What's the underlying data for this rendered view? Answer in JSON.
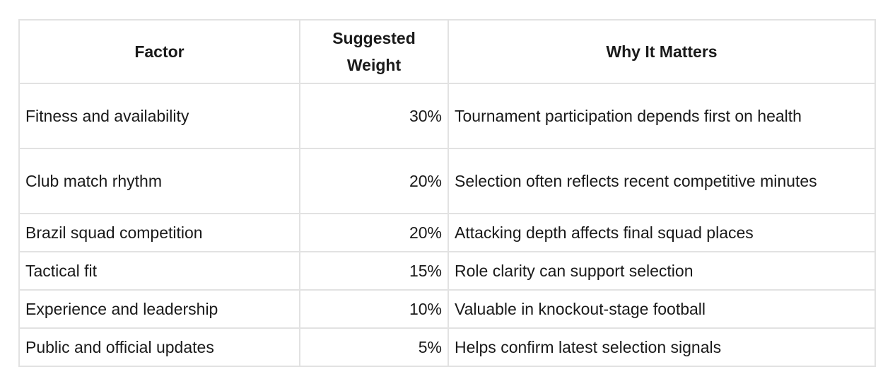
{
  "table": {
    "header": [
      "Factor",
      "Suggested Weight",
      "Why It Matters"
    ],
    "rows": [
      [
        "Fitness and availability",
        "30%",
        "Tournament participation depends first on health"
      ],
      [
        "Club match rhythm",
        "20%",
        "Selection often reflects recent competitive minutes"
      ],
      [
        "Brazil squad competition",
        "20%",
        "Attacking depth affects final squad places"
      ],
      [
        "Tactical fit",
        "15%",
        "Role clarity can support selection"
      ],
      [
        "Experience and leadership",
        "10%",
        "Valuable in knockout-stage football"
      ],
      [
        "Public and official updates",
        "5%",
        "Helps confirm latest selection signals"
      ]
    ]
  }
}
